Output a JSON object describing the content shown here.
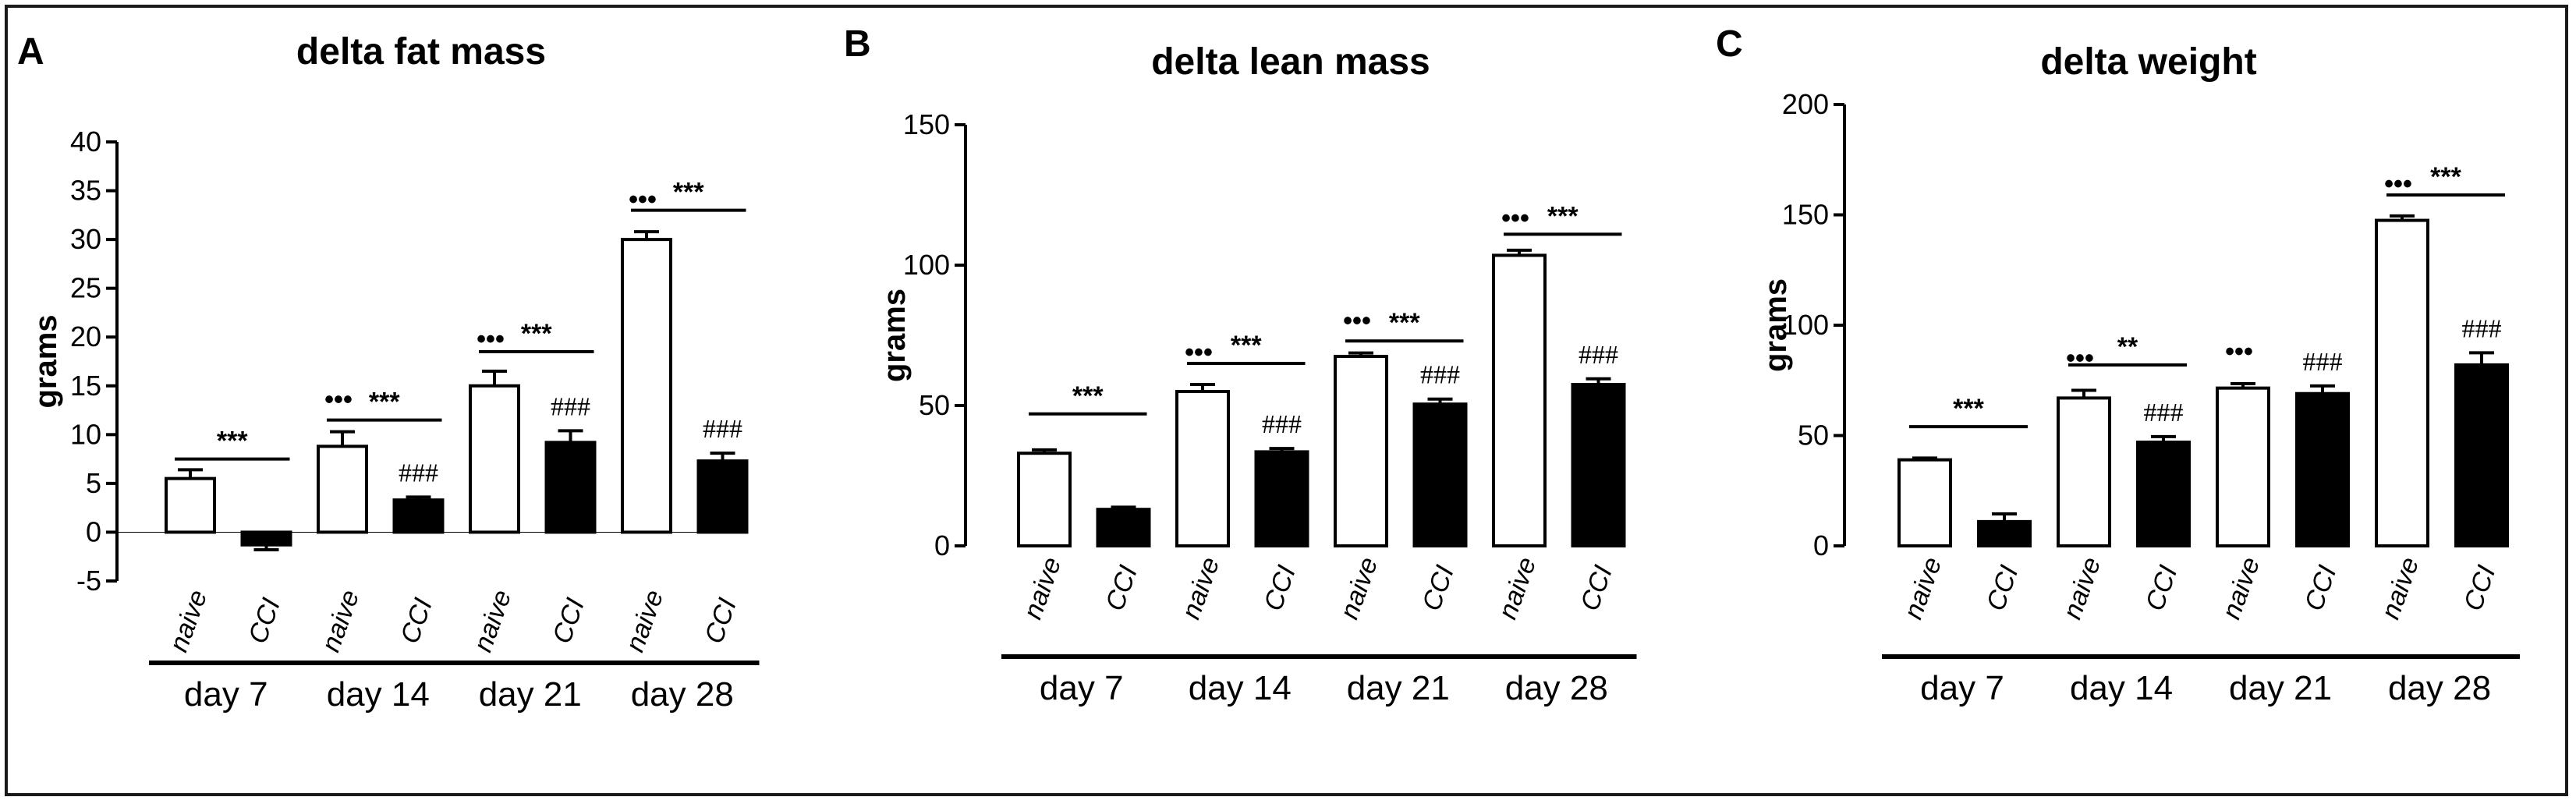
{
  "chart_data": [
    {
      "type": "bar",
      "panel_label": "A",
      "title": "delta fat mass",
      "ylabel": "grams",
      "ylim": [
        -5,
        40
      ],
      "yticks": [
        -5,
        0,
        5,
        10,
        15,
        20,
        25,
        30,
        35,
        40
      ],
      "bars": [
        {
          "group": "day 7",
          "label": "naive",
          "fill": "white",
          "value": 5.5,
          "err": 0.9,
          "marker": ""
        },
        {
          "group": "day 7",
          "label": "CCI",
          "fill": "black",
          "value": -1.3,
          "err": 0.5,
          "marker": ""
        },
        {
          "group": "day 14",
          "label": "naive",
          "fill": "white",
          "value": 8.8,
          "err": 1.5,
          "marker": "•••"
        },
        {
          "group": "day 14",
          "label": "CCI",
          "fill": "black",
          "value": 3.3,
          "err": 0.3,
          "marker": "###"
        },
        {
          "group": "day 21",
          "label": "naive",
          "fill": "white",
          "value": 15.0,
          "err": 1.5,
          "marker": "•••"
        },
        {
          "group": "day 21",
          "label": "CCI",
          "fill": "black",
          "value": 9.2,
          "err": 1.2,
          "marker": "###"
        },
        {
          "group": "day 28",
          "label": "naive",
          "fill": "white",
          "value": 30.0,
          "err": 0.8,
          "marker": "•••"
        },
        {
          "group": "day 28",
          "label": "CCI",
          "fill": "black",
          "value": 7.3,
          "err": 0.8,
          "marker": "###"
        }
      ],
      "groups": [
        "day 7",
        "day 14",
        "day 21",
        "day 28"
      ],
      "brackets": [
        {
          "from": 0,
          "to": 1,
          "y": 7.5,
          "text": "***"
        },
        {
          "from": 2,
          "to": 3,
          "y": 11.5,
          "text": "***"
        },
        {
          "from": 4,
          "to": 5,
          "y": 18.5,
          "text": "***"
        },
        {
          "from": 6,
          "to": 7,
          "y": 33,
          "text": "***"
        }
      ]
    },
    {
      "type": "bar",
      "panel_label": "B",
      "title": "delta lean mass",
      "ylabel": "grams",
      "ylim": [
        0,
        150
      ],
      "yticks": [
        0,
        50,
        100,
        150
      ],
      "bars": [
        {
          "group": "day 7",
          "label": "naive",
          "fill": "white",
          "value": 33,
          "err": 1.2,
          "marker": ""
        },
        {
          "group": "day 7",
          "label": "CCI",
          "fill": "black",
          "value": 13,
          "err": 0.8,
          "marker": ""
        },
        {
          "group": "day 14",
          "label": "naive",
          "fill": "white",
          "value": 55,
          "err": 2.5,
          "marker": "•••"
        },
        {
          "group": "day 14",
          "label": "CCI",
          "fill": "black",
          "value": 33.5,
          "err": 1.2,
          "marker": "###"
        },
        {
          "group": "day 21",
          "label": "naive",
          "fill": "white",
          "value": 67.5,
          "err": 1.2,
          "marker": "•••"
        },
        {
          "group": "day 21",
          "label": "CCI",
          "fill": "black",
          "value": 50.5,
          "err": 1.8,
          "marker": "###"
        },
        {
          "group": "day 28",
          "label": "naive",
          "fill": "white",
          "value": 103.5,
          "err": 1.8,
          "marker": "•••"
        },
        {
          "group": "day 28",
          "label": "CCI",
          "fill": "black",
          "value": 57.5,
          "err": 2.0,
          "marker": "###"
        }
      ],
      "groups": [
        "day 7",
        "day 14",
        "day 21",
        "day 28"
      ],
      "brackets": [
        {
          "from": 0,
          "to": 1,
          "y": 47,
          "text": "***"
        },
        {
          "from": 2,
          "to": 3,
          "y": 65,
          "text": "***"
        },
        {
          "from": 4,
          "to": 5,
          "y": 73,
          "text": "***"
        },
        {
          "from": 6,
          "to": 7,
          "y": 111,
          "text": "***"
        }
      ]
    },
    {
      "type": "bar",
      "panel_label": "C",
      "title": "delta weight",
      "ylabel": "grams",
      "ylim": [
        0,
        200
      ],
      "yticks": [
        0,
        50,
        100,
        150,
        200
      ],
      "bars": [
        {
          "group": "day 7",
          "label": "naive",
          "fill": "white",
          "value": 39,
          "err": 0.8,
          "marker": ""
        },
        {
          "group": "day 7",
          "label": "CCI",
          "fill": "black",
          "value": 11,
          "err": 3.5,
          "marker": ""
        },
        {
          "group": "day 14",
          "label": "naive",
          "fill": "white",
          "value": 67,
          "err": 3.5,
          "marker": "•••"
        },
        {
          "group": "day 14",
          "label": "CCI",
          "fill": "black",
          "value": 47,
          "err": 2.5,
          "marker": "###"
        },
        {
          "group": "day 21",
          "label": "naive",
          "fill": "white",
          "value": 71.5,
          "err": 2.0,
          "marker": "•••"
        },
        {
          "group": "day 21",
          "label": "CCI",
          "fill": "black",
          "value": 69,
          "err": 3.5,
          "marker": "###"
        },
        {
          "group": "day 28",
          "label": "naive",
          "fill": "white",
          "value": 147.5,
          "err": 2.0,
          "marker": "•••"
        },
        {
          "group": "day 28",
          "label": "CCI",
          "fill": "black",
          "value": 82,
          "err": 5.5,
          "marker": "###"
        }
      ],
      "groups": [
        "day 7",
        "day 14",
        "day 21",
        "day 28"
      ],
      "brackets": [
        {
          "from": 0,
          "to": 1,
          "y": 54,
          "text": "***"
        },
        {
          "from": 2,
          "to": 3,
          "y": 82,
          "text": "**"
        },
        {
          "from": 6,
          "to": 7,
          "y": 159,
          "text": "***"
        }
      ]
    }
  ]
}
